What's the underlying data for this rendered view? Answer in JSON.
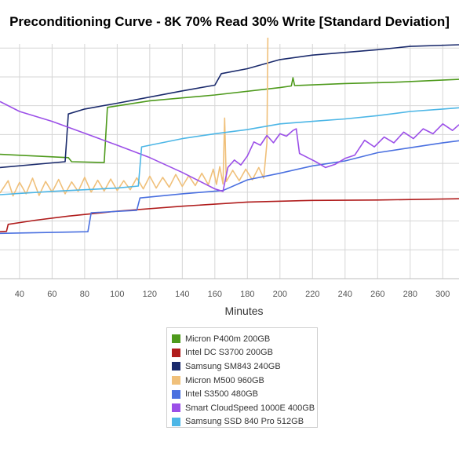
{
  "chart_data": {
    "type": "line",
    "title": "Preconditioning Curve - 8K 70% Read 30% Write [Standard Deviation]",
    "xlabel": "Minutes",
    "ylabel": "",
    "xlim": [
      28,
      310
    ],
    "ylim": [
      0,
      57
    ],
    "x_ticks": [
      40,
      60,
      80,
      100,
      120,
      140,
      160,
      180,
      200,
      220,
      240,
      260,
      280,
      300
    ],
    "grid": true,
    "legend_position": "bottom",
    "series": [
      {
        "name": "Micron P400m 200GB",
        "color": "#4e9a1c",
        "points": [
          [
            28,
            30.2
          ],
          [
            70,
            29.4
          ],
          [
            72,
            28.4
          ],
          [
            92,
            28.2
          ],
          [
            94,
            41.6
          ],
          [
            120,
            43.2
          ],
          [
            160,
            44.6
          ],
          [
            200,
            46.4
          ],
          [
            207,
            46.8
          ],
          [
            208,
            48.8
          ],
          [
            209,
            46.9
          ],
          [
            240,
            47.4
          ],
          [
            270,
            47.7
          ],
          [
            310,
            48.4
          ]
        ]
      },
      {
        "name": "Intel DC S3700 200GB",
        "color": "#b01c1c",
        "points": [
          [
            28,
            11.4
          ],
          [
            32,
            11.5
          ],
          [
            33,
            13.2
          ],
          [
            50,
            14.2
          ],
          [
            70,
            15.2
          ],
          [
            100,
            16.4
          ],
          [
            140,
            17.6
          ],
          [
            180,
            18.6
          ],
          [
            220,
            19.0
          ],
          [
            260,
            19.1
          ],
          [
            310,
            19.4
          ]
        ]
      },
      {
        "name": "Samsung SM843 240GB",
        "color": "#1a2a6c",
        "points": [
          [
            28,
            27.0
          ],
          [
            68,
            28.4
          ],
          [
            70,
            40.0
          ],
          [
            80,
            41.2
          ],
          [
            100,
            42.6
          ],
          [
            140,
            45.6
          ],
          [
            160,
            47.0
          ],
          [
            164,
            49.8
          ],
          [
            180,
            51.0
          ],
          [
            200,
            53.2
          ],
          [
            220,
            54.3
          ],
          [
            260,
            55.6
          ],
          [
            280,
            56.4
          ],
          [
            310,
            56.8
          ]
        ]
      },
      {
        "name": "Micron M500 960GB",
        "color": "#f0c07a",
        "points": [
          [
            28,
            20.8
          ],
          [
            33,
            23.8
          ],
          [
            36,
            20.1
          ],
          [
            40,
            23.4
          ],
          [
            44,
            20.6
          ],
          [
            48,
            24.4
          ],
          [
            52,
            20.2
          ],
          [
            56,
            23.6
          ],
          [
            60,
            21.0
          ],
          [
            64,
            24.1
          ],
          [
            68,
            20.6
          ],
          [
            72,
            23.5
          ],
          [
            76,
            21.2
          ],
          [
            80,
            24.6
          ],
          [
            84,
            21.0
          ],
          [
            88,
            23.9
          ],
          [
            92,
            21.3
          ],
          [
            96,
            24.2
          ],
          [
            100,
            21.4
          ],
          [
            104,
            23.8
          ],
          [
            108,
            21.6
          ],
          [
            112,
            24.5
          ],
          [
            116,
            21.8
          ],
          [
            120,
            24.9
          ],
          [
            124,
            22.0
          ],
          [
            128,
            24.6
          ],
          [
            132,
            22.2
          ],
          [
            136,
            25.3
          ],
          [
            140,
            22.4
          ],
          [
            144,
            25.0
          ],
          [
            148,
            22.6
          ],
          [
            152,
            25.6
          ],
          [
            156,
            22.8
          ],
          [
            159,
            26.6
          ],
          [
            161,
            22.9
          ],
          [
            163,
            27.2
          ],
          [
            165,
            23.0
          ],
          [
            166,
            39.0
          ],
          [
            167,
            23.6
          ],
          [
            171,
            26.3
          ],
          [
            175,
            23.8
          ],
          [
            179,
            26.6
          ],
          [
            183,
            24.0
          ],
          [
            187,
            27.0
          ],
          [
            190,
            24.4
          ],
          [
            192,
            33.0
          ],
          [
            193,
            78.0
          ]
        ]
      },
      {
        "name": "Intel S3500 480GB",
        "color": "#4a70e0",
        "points": [
          [
            28,
            11.0
          ],
          [
            82,
            11.4
          ],
          [
            84,
            16.0
          ],
          [
            112,
            16.6
          ],
          [
            114,
            19.6
          ],
          [
            140,
            20.6
          ],
          [
            165,
            21.4
          ],
          [
            180,
            24.0
          ],
          [
            200,
            25.6
          ],
          [
            220,
            27.4
          ],
          [
            240,
            28.6
          ],
          [
            260,
            30.6
          ],
          [
            280,
            31.8
          ],
          [
            300,
            33.0
          ],
          [
            310,
            33.5
          ]
        ]
      },
      {
        "name": "Smart CloudSpeed 1000E 400GB",
        "color": "#9b4fe8",
        "points": [
          [
            28,
            43.0
          ],
          [
            40,
            40.6
          ],
          [
            60,
            38.2
          ],
          [
            80,
            35.3
          ],
          [
            100,
            32.4
          ],
          [
            120,
            29.4
          ],
          [
            140,
            25.8
          ],
          [
            160,
            21.8
          ],
          [
            165,
            21.2
          ],
          [
            168,
            27.0
          ],
          [
            172,
            28.8
          ],
          [
            176,
            27.6
          ],
          [
            180,
            29.8
          ],
          [
            184,
            33.2
          ],
          [
            188,
            32.4
          ],
          [
            192,
            34.8
          ],
          [
            196,
            33.0
          ],
          [
            200,
            35.2
          ],
          [
            204,
            34.6
          ],
          [
            208,
            36.0
          ],
          [
            210,
            36.4
          ],
          [
            212,
            30.4
          ],
          [
            216,
            29.6
          ],
          [
            222,
            28.4
          ],
          [
            228,
            27.0
          ],
          [
            234,
            27.8
          ],
          [
            240,
            29.2
          ],
          [
            246,
            30.0
          ],
          [
            252,
            33.6
          ],
          [
            258,
            32.0
          ],
          [
            264,
            34.4
          ],
          [
            270,
            33.0
          ],
          [
            276,
            35.6
          ],
          [
            282,
            34.0
          ],
          [
            288,
            36.4
          ],
          [
            294,
            35.2
          ],
          [
            300,
            37.6
          ],
          [
            306,
            36.0
          ],
          [
            310,
            37.4
          ]
        ]
      },
      {
        "name": "Samsung SSD 840 Pro 512GB",
        "color": "#4cb6e6",
        "points": [
          [
            28,
            20.4
          ],
          [
            60,
            21.2
          ],
          [
            100,
            22.0
          ],
          [
            113,
            22.5
          ],
          [
            115,
            32.0
          ],
          [
            140,
            34.0
          ],
          [
            160,
            35.2
          ],
          [
            180,
            36.2
          ],
          [
            200,
            37.6
          ],
          [
            220,
            38.2
          ],
          [
            240,
            38.8
          ],
          [
            260,
            39.6
          ],
          [
            280,
            40.6
          ],
          [
            300,
            41.2
          ],
          [
            310,
            41.5
          ]
        ]
      }
    ]
  }
}
